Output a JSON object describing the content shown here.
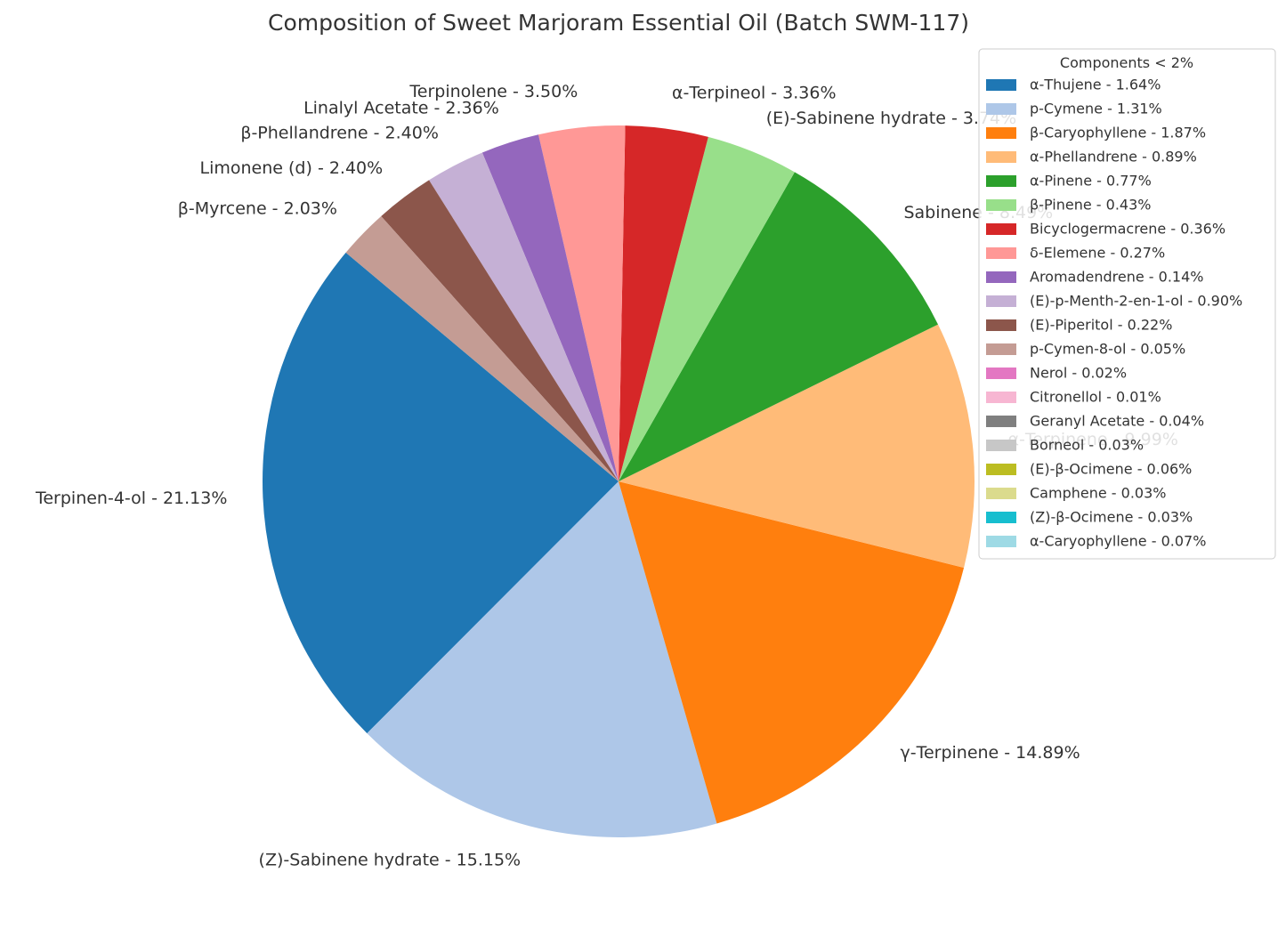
{
  "chart_data": {
    "type": "pie",
    "title": "Composition of Sweet Marjoram Essential Oil (Batch SWM-117)",
    "slices": [
      {
        "label": "Terpinen-4-ol - 21.13%",
        "value": 21.13,
        "color": "#1f77b4"
      },
      {
        "label": "(Z)-Sabinene hydrate - 15.15%",
        "value": 15.15,
        "color": "#aec7e8"
      },
      {
        "label": "γ-Terpinene - 14.89%",
        "value": 14.89,
        "color": "#ff7f0e"
      },
      {
        "label": "α-Terpinene - 9.99%",
        "value": 9.99,
        "color": "#ffbb78"
      },
      {
        "label": "Sabinene - 8.49%",
        "value": 8.49,
        "color": "#2ca02c"
      },
      {
        "label": "(E)-Sabinene hydrate - 3.74%",
        "value": 3.74,
        "color": "#98df8a"
      },
      {
        "label": "α-Terpineol - 3.36%",
        "value": 3.36,
        "color": "#d62728"
      },
      {
        "label": "Terpinolene - 3.50%",
        "value": 3.5,
        "color": "#ff9896"
      },
      {
        "label": "Linalyl Acetate - 2.36%",
        "value": 2.36,
        "color": "#9467bd"
      },
      {
        "label": "β-Phellandrene - 2.40%",
        "value": 2.4,
        "color": "#c5b0d5"
      },
      {
        "label": "Limonene (d) - 2.40%",
        "value": 2.4,
        "color": "#8c564b"
      },
      {
        "label": "β-Myrcene - 2.03%",
        "value": 2.03,
        "color": "#c49c94"
      }
    ],
    "legend": {
      "title": "Components < 2%",
      "placement": "top-right",
      "entries": [
        {
          "label": "α-Thujene - 1.64%",
          "value": 1.64,
          "color": "#1f77b4"
        },
        {
          "label": "p-Cymene - 1.31%",
          "value": 1.31,
          "color": "#aec7e8"
        },
        {
          "label": "β-Caryophyllene - 1.87%",
          "value": 1.87,
          "color": "#ff7f0e"
        },
        {
          "label": "α-Phellandrene - 0.89%",
          "value": 0.89,
          "color": "#ffbb78"
        },
        {
          "label": "α-Pinene - 0.77%",
          "value": 0.77,
          "color": "#2ca02c"
        },
        {
          "label": "β-Pinene - 0.43%",
          "value": 0.43,
          "color": "#98df8a"
        },
        {
          "label": "Bicyclogermacrene - 0.36%",
          "value": 0.36,
          "color": "#d62728"
        },
        {
          "label": "δ-Elemene - 0.27%",
          "value": 0.27,
          "color": "#ff9896"
        },
        {
          "label": "Aromadendrene - 0.14%",
          "value": 0.14,
          "color": "#9467bd"
        },
        {
          "label": "(E)-p-Menth-2-en-1-ol - 0.90%",
          "value": 0.9,
          "color": "#c5b0d5"
        },
        {
          "label": "(E)-Piperitol - 0.22%",
          "value": 0.22,
          "color": "#8c564b"
        },
        {
          "label": "p-Cymen-8-ol - 0.05%",
          "value": 0.05,
          "color": "#c49c94"
        },
        {
          "label": "Nerol - 0.02%",
          "value": 0.02,
          "color": "#e377c2"
        },
        {
          "label": "Citronellol - 0.01%",
          "value": 0.01,
          "color": "#f7b6d2"
        },
        {
          "label": "Geranyl Acetate - 0.04%",
          "value": 0.04,
          "color": "#7f7f7f"
        },
        {
          "label": "Borneol - 0.03%",
          "value": 0.03,
          "color": "#c7c7c7"
        },
        {
          "label": "(E)-β-Ocimene - 0.06%",
          "value": 0.06,
          "color": "#bcbd22"
        },
        {
          "label": "Camphene - 0.03%",
          "value": 0.03,
          "color": "#dbdb8d"
        },
        {
          "label": "(Z)-β-Ocimene - 0.03%",
          "value": 0.03,
          "color": "#17becf"
        },
        {
          "label": "α-Caryophyllene - 0.07%",
          "value": 0.07,
          "color": "#9edae5"
        }
      ]
    }
  }
}
